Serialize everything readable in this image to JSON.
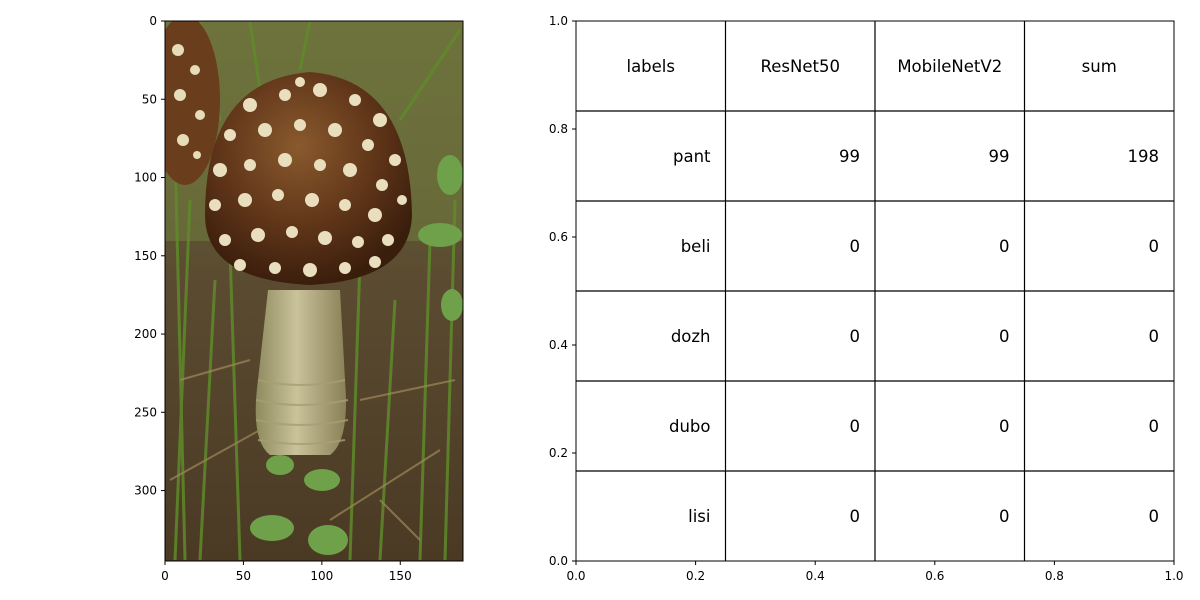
{
  "chart_data": [
    {
      "type": "image",
      "xlim": [
        0,
        190
      ],
      "ylim": [
        345,
        0
      ],
      "xticks": [
        0,
        50,
        100,
        150
      ],
      "yticks": [
        0,
        50,
        100,
        150,
        200,
        250,
        300
      ],
      "xtick_labels": [
        "0",
        "50",
        "100",
        "150"
      ],
      "ytick_labels": [
        "0",
        "50",
        "100",
        "150",
        "200",
        "250",
        "300"
      ]
    },
    {
      "type": "table",
      "xlim": [
        0,
        1
      ],
      "ylim": [
        0,
        1
      ],
      "xticks": [
        0,
        0.2,
        0.4,
        0.6,
        0.8,
        1.0
      ],
      "yticks": [
        0,
        0.2,
        0.4,
        0.6,
        0.8,
        1.0
      ],
      "xtick_labels": [
        "0.0",
        "0.2",
        "0.4",
        "0.6",
        "0.8",
        "1.0"
      ],
      "ytick_labels": [
        "0.0",
        "0.2",
        "0.4",
        "0.6",
        "0.8",
        "1.0"
      ],
      "columns": [
        "labels",
        "ResNet50",
        "MobileNetV2",
        "sum"
      ],
      "rows": [
        [
          "pant",
          "99",
          "99",
          "198"
        ],
        [
          "beli",
          "0",
          "0",
          "0"
        ],
        [
          "dozh",
          "0",
          "0",
          "0"
        ],
        [
          "dubo",
          "0",
          "0",
          "0"
        ],
        [
          "lisi",
          "0",
          "0",
          "0"
        ]
      ]
    }
  ]
}
